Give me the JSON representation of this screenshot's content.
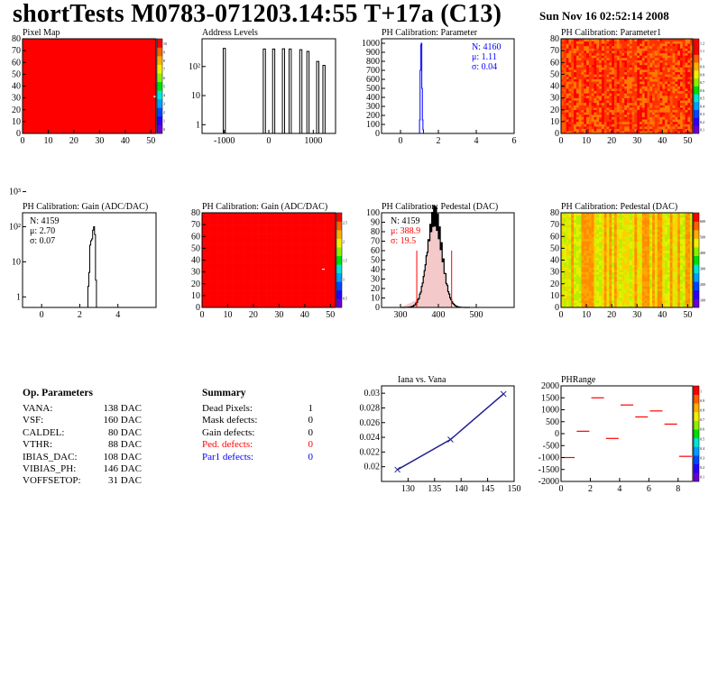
{
  "header": {
    "title": "shortTests M0783-071203.14:55 T+17a (C13)",
    "date": "Sun Nov 16 02:52:14 2008"
  },
  "colors": {
    "red": "#ff0000",
    "blue": "#0000ff",
    "hist_fill": "#f4c9c9",
    "iana_line": "#202090"
  },
  "chart_data": [
    {
      "type": "heatmap",
      "title": "Pixel Map",
      "xlim": [
        0,
        52
      ],
      "ylim": [
        0,
        80
      ],
      "x_ticks": [
        "0",
        "10",
        "20",
        "30",
        "40",
        "50"
      ],
      "y_ticks": [
        "0",
        "10",
        "20",
        "30",
        "40",
        "50",
        "60",
        "70",
        "80"
      ],
      "z_ticks": [
        "0",
        "1",
        "2",
        "3",
        "4",
        "5",
        "6",
        "7",
        "8",
        "9",
        "10"
      ],
      "uniform_value": 10,
      "outlier": {
        "x": 50,
        "y": 31,
        "value": 0
      }
    },
    {
      "type": "bar",
      "title": "Address Levels",
      "log_y": true,
      "xlim": [
        -1500,
        1500
      ],
      "ylim": [
        0.5,
        900
      ],
      "x_ticks": [
        "-1000",
        "0",
        "1000"
      ],
      "y_ticks": [
        "1",
        "10",
        "10²"
      ],
      "peak_x": [
        -1000,
        -100,
        110,
        330,
        480,
        720,
        880,
        1100,
        1240
      ],
      "peak_y": [
        420,
        400,
        400,
        405,
        400,
        380,
        330,
        150,
        110
      ]
    },
    {
      "type": "bar",
      "title": "PH Calibration: Parameter",
      "xlim": [
        -1,
        6
      ],
      "ylim": [
        0,
        1050
      ],
      "x_ticks": [
        "0",
        "2",
        "4",
        "6"
      ],
      "y_ticks": [
        "0",
        "100",
        "200",
        "300",
        "400",
        "500",
        "600",
        "700",
        "800",
        "900",
        "1000"
      ],
      "bins": [
        1.02,
        1.05,
        1.08,
        1.11,
        1.14,
        1.17,
        1.2
      ],
      "counts": [
        150,
        700,
        980,
        1000,
        500,
        150,
        40
      ],
      "stats": [
        "N: 4160",
        "μ: 1.11",
        "σ: 0.04"
      ]
    },
    {
      "type": "heatmap",
      "title": "PH Calibration: Parameter1",
      "xlim": [
        0,
        52
      ],
      "ylim": [
        0,
        80
      ],
      "x_ticks": [
        "0",
        "10",
        "20",
        "30",
        "40",
        "50"
      ],
      "y_ticks": [
        "0",
        "10",
        "20",
        "30",
        "40",
        "50",
        "60",
        "70",
        "80"
      ],
      "z_ticks": [
        "0.1",
        "0.2",
        "0.3",
        "0.4",
        "0.5",
        "0.6",
        "0.7",
        "0.8",
        "0.9",
        "1",
        "1.1",
        "1.2"
      ]
    },
    {
      "type": "bar",
      "title": "PH Calibration: Gain (ADC/DAC)",
      "log_y": true,
      "xlim": [
        -1,
        6
      ],
      "ylim": [
        0.5,
        250
      ],
      "x_ticks": [
        "0",
        "2",
        "4"
      ],
      "y_ticks": [
        "1",
        "10",
        "10²",
        "10³"
      ],
      "bins": [
        2.45,
        2.5,
        2.55,
        2.6,
        2.65,
        2.7,
        2.75,
        2.8,
        2.85
      ],
      "counts": [
        2,
        5,
        30,
        40,
        45,
        80,
        100,
        60,
        3
      ],
      "stats": [
        "N: 4159",
        "μ: 2.70",
        "σ: 0.07"
      ]
    },
    {
      "type": "heatmap",
      "title": "PH Calibration: Gain (ADC/DAC)",
      "xlim": [
        0,
        52
      ],
      "ylim": [
        0,
        80
      ],
      "x_ticks": [
        "0",
        "10",
        "20",
        "30",
        "40",
        "50"
      ],
      "y_ticks": [
        "0",
        "10",
        "20",
        "30",
        "40",
        "50",
        "60",
        "70",
        "80"
      ],
      "z_ticks": [
        "0.5",
        "1",
        "1.5",
        "2",
        "2.5"
      ]
    },
    {
      "type": "bar",
      "title": "PH Calibration: Pedestal (DAC)",
      "xlim": [
        250,
        600
      ],
      "ylim": [
        0,
        100
      ],
      "x_ticks": [
        "300",
        "400",
        "500"
      ],
      "y_ticks": [
        "0",
        "10",
        "20",
        "30",
        "40",
        "50",
        "60",
        "70",
        "80",
        "90",
        "100"
      ],
      "mean": 388.9,
      "sigma": 19.5,
      "peak": 97,
      "cut_lines": [
        343,
        435
      ],
      "stats": [
        "N: 4159",
        "μ: 388.9",
        "σ: 19.5"
      ]
    },
    {
      "type": "heatmap",
      "title": "PH Calibration: Pedestal (DAC)",
      "xlim": [
        0,
        52
      ],
      "ylim": [
        0,
        80
      ],
      "x_ticks": [
        "0",
        "10",
        "20",
        "30",
        "40",
        "50"
      ],
      "y_ticks": [
        "0",
        "10",
        "20",
        "30",
        "40",
        "50",
        "60",
        "70",
        "80"
      ],
      "z_ticks": [
        "100",
        "200",
        "300",
        "400",
        "500",
        "600"
      ]
    },
    {
      "type": "line",
      "title": "Iana vs. Vana",
      "xlim": [
        125,
        150
      ],
      "ylim": [
        0.018,
        0.031
      ],
      "x_ticks": [
        "130",
        "135",
        "140",
        "145",
        "150"
      ],
      "y_ticks": [
        "0.02",
        "0.022",
        "0.024",
        "0.026",
        "0.028",
        "0.03"
      ],
      "x": [
        128,
        138,
        148
      ],
      "y": [
        0.0196,
        0.0237,
        0.0299
      ]
    },
    {
      "type": "scatter",
      "title": "PHRange",
      "xlim": [
        0,
        9
      ],
      "ylim": [
        -2000,
        2000
      ],
      "x_ticks": [
        "0",
        "2",
        "4",
        "6",
        "8"
      ],
      "y_ticks": [
        "-2000",
        "-1500",
        "-1000",
        "-500",
        "0",
        "500",
        "1000",
        "1500",
        "2000"
      ],
      "z_ticks": [
        "0.1",
        "0.2",
        "0.3",
        "0.4",
        "0.5",
        "0.6",
        "0.7",
        "0.8",
        "0.9",
        "1"
      ],
      "x": [
        0.5,
        1.5,
        2.5,
        3.5,
        4.5,
        5.5,
        6.5,
        7.5,
        8.5
      ],
      "y": [
        -1000,
        100,
        1500,
        -200,
        1200,
        700,
        950,
        400,
        -950
      ]
    }
  ],
  "op_parameters": {
    "heading": "Op. Parameters",
    "rows": [
      {
        "name": "VANA:",
        "value": "138 DAC"
      },
      {
        "name": "VSF:",
        "value": "160 DAC"
      },
      {
        "name": "CALDEL:",
        "value": "80 DAC"
      },
      {
        "name": "VTHR:",
        "value": "88 DAC"
      },
      {
        "name": "IBIAS_DAC:",
        "value": "108 DAC"
      },
      {
        "name": "VIBIAS_PH:",
        "value": "146 DAC"
      },
      {
        "name": "VOFFSETOP:",
        "value": "31 DAC"
      }
    ]
  },
  "summary": {
    "heading": "Summary",
    "rows": [
      {
        "name": "Dead Pixels:",
        "value": "1",
        "color": "#000000"
      },
      {
        "name": "Mask defects:",
        "value": "0",
        "color": "#000000"
      },
      {
        "name": "Gain defects:",
        "value": "0",
        "color": "#000000"
      },
      {
        "name": "Ped. defects:",
        "value": "0",
        "color": "#ff0000"
      },
      {
        "name": "Par1 defects:",
        "value": "0",
        "color": "#0000ff"
      }
    ]
  }
}
